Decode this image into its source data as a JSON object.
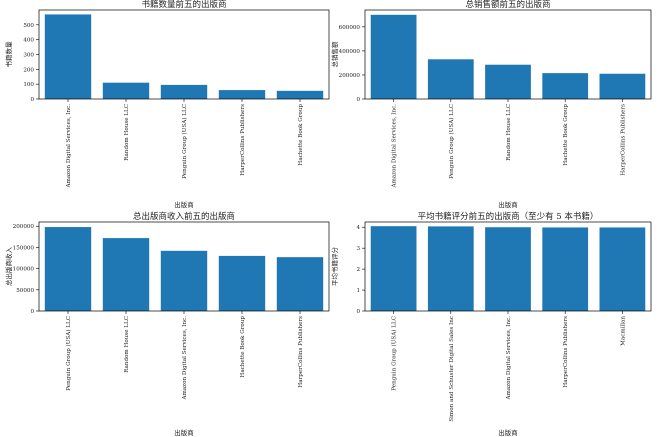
{
  "chart_data": [
    {
      "type": "bar",
      "title": "书籍数量前五的出版商",
      "xlabel": "出版商",
      "ylabel": "书籍数量",
      "categories": [
        "Amazon Digital Services,  Inc.",
        "Random House LLC",
        "Penguin Group (USA) LLC",
        "HarperCollins Publishers",
        "Hachette Book Group"
      ],
      "values": [
        570,
        110,
        95,
        60,
        55
      ],
      "ylim": [
        0,
        600
      ],
      "yticks": [
        "0",
        "100",
        "200",
        "300",
        "400",
        "500"
      ],
      "grid": false,
      "color": "#1f77b4"
    },
    {
      "type": "bar",
      "title": "总销售额前五的出版商",
      "xlabel": "出版商",
      "ylabel": "总销售额",
      "categories": [
        "Amazon Digital Services,  Inc.",
        "Penguin Group (USA) LLC",
        "Random House LLC",
        "Hachette Book Group",
        "HarperCollins Publishers"
      ],
      "values": [
        700000,
        330000,
        285000,
        215000,
        210000
      ],
      "ylim": [
        0,
        740000
      ],
      "yticks": [
        "0",
        "200000",
        "400000",
        "600000"
      ],
      "grid": false,
      "color": "#1f77b4"
    },
    {
      "type": "bar",
      "title": "总出版商收入前五的出版商",
      "xlabel": "出版商",
      "ylabel": "总出版商收入",
      "categories": [
        "Penguin Group (USA) LLC",
        "Random House LLC",
        "Amazon Digital Services,  Inc.",
        "Hachette Book Group",
        "HarperCollins Publishers"
      ],
      "values": [
        198000,
        172000,
        142000,
        130000,
        127000
      ],
      "ylim": [
        0,
        210000
      ],
      "yticks": [
        "0",
        "50000",
        "100000",
        "150000",
        "200000"
      ],
      "grid": false,
      "color": "#1f77b4"
    },
    {
      "type": "bar",
      "title": "平均书籍评分前五的出版商（至少有 5 本书籍）",
      "xlabel": "出版商",
      "ylabel": "平均书籍评分",
      "categories": [
        "Penguin Group (USA) LLC",
        "Simon and Schuster Digital Sales Inc",
        "Amazon Digital Services,  Inc.",
        "HarperCollins Publishers",
        "Macmillan"
      ],
      "values": [
        4.05,
        4.04,
        4.0,
        3.99,
        3.99
      ],
      "ylim": [
        0,
        4.25
      ],
      "yticks": [
        "0",
        "1",
        "2",
        "3",
        "4"
      ],
      "grid": false,
      "color": "#1f77b4"
    }
  ]
}
